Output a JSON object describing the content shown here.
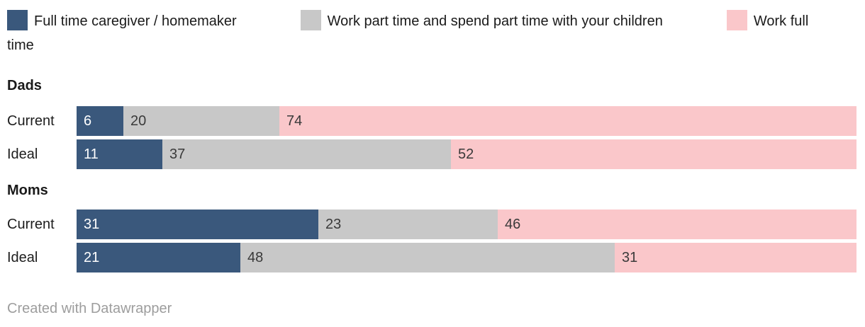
{
  "colors": {
    "background": "#ffffff",
    "series_blue": "#3a587c",
    "series_gray": "#c8c8c8",
    "series_pink": "#fac7ca",
    "value_label_dark": "#3a3a3a",
    "value_label_light": "#ffffff",
    "text": "#1a1a1a",
    "credit_gray": "#9d9d9d"
  },
  "footer": {
    "credit": "Created with Datawrapper"
  },
  "chart_data": {
    "type": "bar",
    "stacked": true,
    "orientation": "horizontal",
    "value_unit": "percent",
    "xlim": [
      0,
      100
    ],
    "grid": false,
    "legend_position": "top",
    "series": [
      "Full time caregiver / homemaker",
      "Work part time and spend part time with your children",
      "Work full time"
    ],
    "colors": [
      "#3a587c",
      "#c8c8c8",
      "#fac7ca"
    ],
    "groups": [
      {
        "label": "Dads",
        "rows": [
          {
            "label": "Current",
            "values": [
              6,
              20,
              74
            ]
          },
          {
            "label": "Ideal",
            "values": [
              11,
              37,
              52
            ]
          }
        ]
      },
      {
        "label": "Moms",
        "rows": [
          {
            "label": "Current",
            "values": [
              31,
              23,
              46
            ]
          },
          {
            "label": "Ideal",
            "values": [
              21,
              48,
              31
            ]
          }
        ]
      }
    ]
  }
}
